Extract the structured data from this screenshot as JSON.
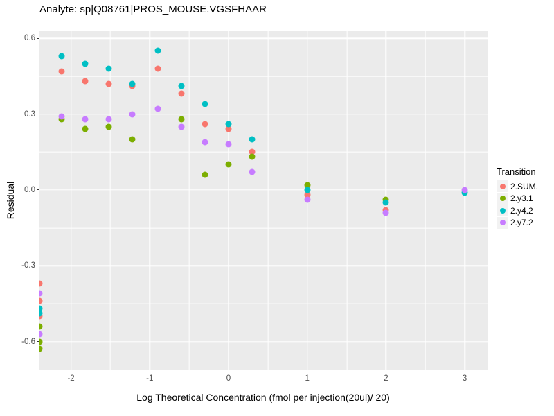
{
  "chart_data": {
    "type": "scatter",
    "title": "Analyte: sp|Q08761|PROS_MOUSE.VGSFHAAR",
    "xlabel": "Log Theoretical Concentration (fmol per injection(20ul)/ 20)",
    "ylabel": "Residual",
    "panel_bg": "#EBEBEB",
    "grid_color": "#FFFFFF",
    "tick_text_color": "#4D4D4D",
    "xlim": [
      -2.401,
      3.289
    ],
    "ylim": [
      -0.711,
      0.628
    ],
    "x_ticks": [
      {
        "v": -2,
        "label": "-2"
      },
      {
        "v": -1,
        "label": "-1"
      },
      {
        "v": 0,
        "label": "0"
      },
      {
        "v": 1,
        "label": "1"
      },
      {
        "v": 2,
        "label": "2"
      },
      {
        "v": 3,
        "label": "3"
      }
    ],
    "y_ticks": [
      {
        "v": 0.6,
        "label": "0.6"
      },
      {
        "v": 0.3,
        "label": "0.3"
      },
      {
        "v": 0,
        "label": "0.0"
      },
      {
        "v": -0.3,
        "label": "-0.3"
      },
      {
        "v": -0.6,
        "label": "-0.6"
      }
    ],
    "x_minor": [
      -1.5,
      -0.5,
      0.5,
      1.5,
      2.5
    ],
    "y_minor": [
      0.45,
      0.15,
      -0.15,
      -0.45
    ],
    "legend": {
      "title": "Transition",
      "key_bg": "#F2F2F2"
    },
    "series": [
      {
        "name": "2.SUM.",
        "color": "#F8766D",
        "points": [
          [
            -2.401,
            -0.37
          ],
          [
            -2.401,
            -0.44
          ],
          [
            -2.401,
            -0.5
          ],
          [
            -2.12,
            0.47
          ],
          [
            -1.82,
            0.43
          ],
          [
            -1.52,
            0.42
          ],
          [
            -1.22,
            0.41
          ],
          [
            -0.9,
            0.48
          ],
          [
            -0.6,
            0.38
          ],
          [
            -0.3,
            0.26
          ],
          [
            0,
            0.24
          ],
          [
            0.3,
            0.15
          ],
          [
            1,
            -0.02
          ],
          [
            2,
            -0.08
          ]
        ]
      },
      {
        "name": "2.y3.1",
        "color": "#7CAE00",
        "points": [
          [
            -2.401,
            -0.54
          ],
          [
            -2.401,
            -0.6
          ],
          [
            -2.401,
            -0.63
          ],
          [
            -2.12,
            0.28
          ],
          [
            -1.82,
            0.24
          ],
          [
            -1.52,
            0.25
          ],
          [
            -1.22,
            0.2
          ],
          [
            -0.6,
            0.28
          ],
          [
            -0.3,
            0.06
          ],
          [
            0,
            0.1
          ],
          [
            0.3,
            0.13
          ],
          [
            1,
            0.02
          ],
          [
            2,
            -0.04
          ]
        ]
      },
      {
        "name": "2.y4.2",
        "color": "#00BFC4",
        "points": [
          [
            -2.401,
            -0.47
          ],
          [
            -2.401,
            -0.49
          ],
          [
            -2.12,
            0.53
          ],
          [
            -1.82,
            0.5
          ],
          [
            -1.52,
            0.48
          ],
          [
            -1.22,
            0.42
          ],
          [
            -0.9,
            0.55
          ],
          [
            -0.6,
            0.41
          ],
          [
            -0.3,
            0.34
          ],
          [
            0,
            0.26
          ],
          [
            0.3,
            0.2
          ],
          [
            1,
            0
          ],
          [
            2,
            -0.05
          ],
          [
            3,
            -0.01
          ]
        ]
      },
      {
        "name": "2.y7.2",
        "color": "#C77CFF",
        "points": [
          [
            -2.401,
            -0.41
          ],
          [
            -2.401,
            -0.57
          ],
          [
            -2.12,
            0.29
          ],
          [
            -1.82,
            0.28
          ],
          [
            -1.52,
            0.28
          ],
          [
            -1.22,
            0.3
          ],
          [
            -0.9,
            0.32
          ],
          [
            -0.6,
            0.25
          ],
          [
            -0.3,
            0.19
          ],
          [
            0,
            0.18
          ],
          [
            0.3,
            0.07
          ],
          [
            1,
            -0.04
          ],
          [
            2,
            -0.09
          ],
          [
            3,
            0
          ]
        ]
      }
    ]
  }
}
